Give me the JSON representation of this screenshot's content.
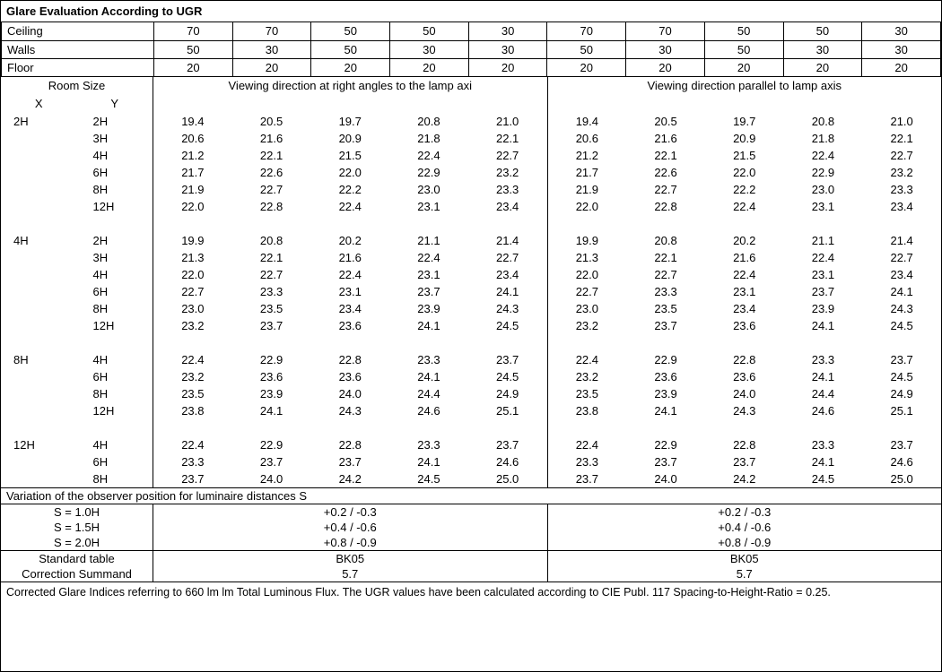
{
  "title": "Glare Evaluation According to UGR",
  "paramRows": [
    {
      "label": "Ceiling",
      "vals": [
        "70",
        "70",
        "50",
        "50",
        "30",
        "70",
        "70",
        "50",
        "50",
        "30"
      ]
    },
    {
      "label": "Walls",
      "vals": [
        "50",
        "30",
        "50",
        "30",
        "30",
        "50",
        "30",
        "50",
        "30",
        "30"
      ]
    },
    {
      "label": "Floor",
      "vals": [
        "20",
        "20",
        "20",
        "20",
        "20",
        "20",
        "20",
        "20",
        "20",
        "20"
      ]
    }
  ],
  "roomSizeLabel": "Room Size",
  "xLabel": "X",
  "yLabel": "Y",
  "viewHdrLeft": "Viewing direction at right angles to the lamp axi",
  "viewHdrRight": "Viewing direction parallel to lamp axis",
  "groups": [
    {
      "x": "2H",
      "rows": [
        {
          "y": "2H",
          "l": [
            "19.4",
            "20.5",
            "19.7",
            "20.8",
            "21.0"
          ],
          "r": [
            "19.4",
            "20.5",
            "19.7",
            "20.8",
            "21.0"
          ]
        },
        {
          "y": "3H",
          "l": [
            "20.6",
            "21.6",
            "20.9",
            "21.8",
            "22.1"
          ],
          "r": [
            "20.6",
            "21.6",
            "20.9",
            "21.8",
            "22.1"
          ]
        },
        {
          "y": "4H",
          "l": [
            "21.2",
            "22.1",
            "21.5",
            "22.4",
            "22.7"
          ],
          "r": [
            "21.2",
            "22.1",
            "21.5",
            "22.4",
            "22.7"
          ]
        },
        {
          "y": "6H",
          "l": [
            "21.7",
            "22.6",
            "22.0",
            "22.9",
            "23.2"
          ],
          "r": [
            "21.7",
            "22.6",
            "22.0",
            "22.9",
            "23.2"
          ]
        },
        {
          "y": "8H",
          "l": [
            "21.9",
            "22.7",
            "22.2",
            "23.0",
            "23.3"
          ],
          "r": [
            "21.9",
            "22.7",
            "22.2",
            "23.0",
            "23.3"
          ]
        },
        {
          "y": "12H",
          "l": [
            "22.0",
            "22.8",
            "22.4",
            "23.1",
            "23.4"
          ],
          "r": [
            "22.0",
            "22.8",
            "22.4",
            "23.1",
            "23.4"
          ]
        }
      ]
    },
    {
      "x": "4H",
      "rows": [
        {
          "y": "2H",
          "l": [
            "19.9",
            "20.8",
            "20.2",
            "21.1",
            "21.4"
          ],
          "r": [
            "19.9",
            "20.8",
            "20.2",
            "21.1",
            "21.4"
          ]
        },
        {
          "y": "3H",
          "l": [
            "21.3",
            "22.1",
            "21.6",
            "22.4",
            "22.7"
          ],
          "r": [
            "21.3",
            "22.1",
            "21.6",
            "22.4",
            "22.7"
          ]
        },
        {
          "y": "4H",
          "l": [
            "22.0",
            "22.7",
            "22.4",
            "23.1",
            "23.4"
          ],
          "r": [
            "22.0",
            "22.7",
            "22.4",
            "23.1",
            "23.4"
          ]
        },
        {
          "y": "6H",
          "l": [
            "22.7",
            "23.3",
            "23.1",
            "23.7",
            "24.1"
          ],
          "r": [
            "22.7",
            "23.3",
            "23.1",
            "23.7",
            "24.1"
          ]
        },
        {
          "y": "8H",
          "l": [
            "23.0",
            "23.5",
            "23.4",
            "23.9",
            "24.3"
          ],
          "r": [
            "23.0",
            "23.5",
            "23.4",
            "23.9",
            "24.3"
          ]
        },
        {
          "y": "12H",
          "l": [
            "23.2",
            "23.7",
            "23.6",
            "24.1",
            "24.5"
          ],
          "r": [
            "23.2",
            "23.7",
            "23.6",
            "24.1",
            "24.5"
          ]
        }
      ]
    },
    {
      "x": "8H",
      "rows": [
        {
          "y": "4H",
          "l": [
            "22.4",
            "22.9",
            "22.8",
            "23.3",
            "23.7"
          ],
          "r": [
            "22.4",
            "22.9",
            "22.8",
            "23.3",
            "23.7"
          ]
        },
        {
          "y": "6H",
          "l": [
            "23.2",
            "23.6",
            "23.6",
            "24.1",
            "24.5"
          ],
          "r": [
            "23.2",
            "23.6",
            "23.6",
            "24.1",
            "24.5"
          ]
        },
        {
          "y": "8H",
          "l": [
            "23.5",
            "23.9",
            "24.0",
            "24.4",
            "24.9"
          ],
          "r": [
            "23.5",
            "23.9",
            "24.0",
            "24.4",
            "24.9"
          ]
        },
        {
          "y": "12H",
          "l": [
            "23.8",
            "24.1",
            "24.3",
            "24.6",
            "25.1"
          ],
          "r": [
            "23.8",
            "24.1",
            "24.3",
            "24.6",
            "25.1"
          ]
        }
      ]
    },
    {
      "x": "12H",
      "rows": [
        {
          "y": "4H",
          "l": [
            "22.4",
            "22.9",
            "22.8",
            "23.3",
            "23.7"
          ],
          "r": [
            "22.4",
            "22.9",
            "22.8",
            "23.3",
            "23.7"
          ]
        },
        {
          "y": "6H",
          "l": [
            "23.3",
            "23.7",
            "23.7",
            "24.1",
            "24.6"
          ],
          "r": [
            "23.3",
            "23.7",
            "23.7",
            "24.1",
            "24.6"
          ]
        },
        {
          "y": "8H",
          "l": [
            "23.7",
            "24.0",
            "24.2",
            "24.5",
            "25.0"
          ],
          "r": [
            "23.7",
            "24.0",
            "24.2",
            "24.5",
            "25.0"
          ]
        }
      ]
    }
  ],
  "variationTitle": "Variation of the observer position for luminaire distances S",
  "variationRows": [
    {
      "label": "S = 1.0H",
      "l": "+0.2 / -0.3",
      "r": "+0.2 / -0.3"
    },
    {
      "label": "S = 1.5H",
      "l": "+0.4 / -0.6",
      "r": "+0.4 / -0.6"
    },
    {
      "label": "S = 2.0H",
      "l": "+0.8 / -0.9",
      "r": "+0.8 / -0.9"
    }
  ],
  "stdTableLabel": "Standard table",
  "correctionLabel": "Correction Summand",
  "stdTableVal": "BK05",
  "correctionVal": "5.7",
  "footnote": "Corrected Glare Indices referring to 660 lm lm Total Luminous Flux. The UGR values have been calculated according to CIE Publ. 117    Spacing-to-Height-Ratio = 0.25."
}
